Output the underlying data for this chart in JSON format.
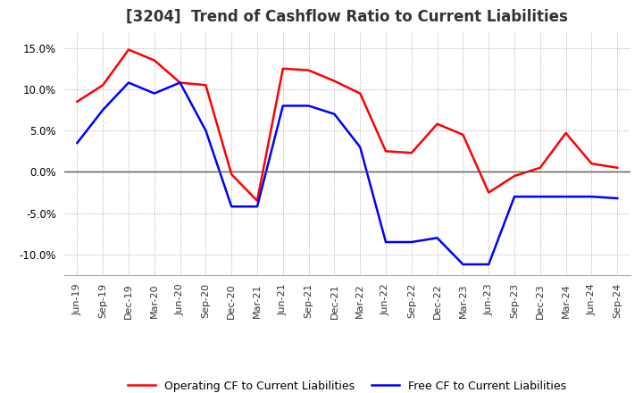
{
  "title": "[3204]  Trend of Cashflow Ratio to Current Liabilities",
  "x_labels": [
    "Jun-19",
    "Sep-19",
    "Dec-19",
    "Mar-20",
    "Jun-20",
    "Sep-20",
    "Dec-20",
    "Mar-21",
    "Jun-21",
    "Sep-21",
    "Dec-21",
    "Mar-22",
    "Jun-22",
    "Sep-22",
    "Dec-22",
    "Mar-23",
    "Jun-23",
    "Sep-23",
    "Dec-23",
    "Mar-24",
    "Jun-24",
    "Sep-24"
  ],
  "operating_cf": [
    8.5,
    10.5,
    14.8,
    13.5,
    10.8,
    10.5,
    -0.3,
    -3.5,
    12.5,
    12.3,
    11.0,
    9.5,
    2.5,
    2.3,
    5.8,
    4.5,
    -2.5,
    -0.5,
    0.5,
    4.7,
    1.0,
    0.5
  ],
  "free_cf": [
    3.5,
    7.5,
    10.8,
    9.5,
    10.8,
    5.0,
    -4.2,
    -4.2,
    8.0,
    8.0,
    7.0,
    3.0,
    -8.5,
    -8.5,
    -8.0,
    -11.2,
    -11.2,
    -3.0,
    -3.0,
    -3.0,
    -3.0,
    -3.2
  ],
  "operating_color": "#FF0000",
  "free_color": "#0000FF",
  "ylim": [
    -12.5,
    17.0
  ],
  "yticks": [
    -10.0,
    -5.0,
    0.0,
    5.0,
    10.0,
    15.0
  ],
  "background_color": "#FFFFFF",
  "legend_operating": "Operating CF to Current Liabilities",
  "legend_free": "Free CF to Current Liabilities"
}
